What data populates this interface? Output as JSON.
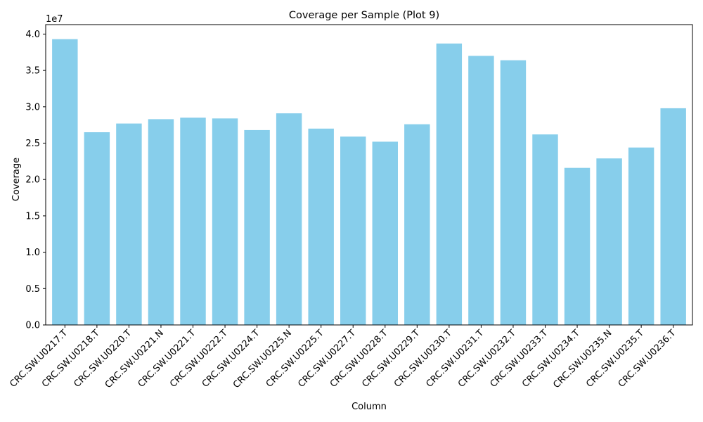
{
  "chart_data": {
    "type": "bar",
    "title": "Coverage per Sample (Plot 9)",
    "xlabel": "Column",
    "ylabel": "Coverage",
    "y_offset_label": "1e7",
    "bar_color": "#87CEEB",
    "ylim": [
      0,
      41300000
    ],
    "yticks": [
      0,
      5000000,
      10000000,
      15000000,
      20000000,
      25000000,
      30000000,
      35000000,
      40000000
    ],
    "ytick_labels": [
      "0.0",
      "0.5",
      "1.0",
      "1.5",
      "2.0",
      "2.5",
      "3.0",
      "3.5",
      "4.0"
    ],
    "categories": [
      "CRC.SW.U0217.T",
      "CRC.SW.U0218.T",
      "CRC.SW.U0220.T",
      "CRC.SW.U0221.N",
      "CRC.SW.U0221.T",
      "CRC.SW.U0222.T",
      "CRC.SW.U0224.T",
      "CRC.SW.U0225.N",
      "CRC.SW.U0225.T",
      "CRC.SW.U0227.T",
      "CRC.SW.U0228.T",
      "CRC.SW.U0229.T",
      "CRC.SW.U0230.T",
      "CRC.SW.U0231.T",
      "CRC.SW.U0232.T",
      "CRC.SW.U0233.T",
      "CRC.SW.U0234.T",
      "CRC.SW.U0235.N",
      "CRC.SW.U0235.T",
      "CRC.SW.U0236.T"
    ],
    "values": [
      39300000,
      26500000,
      27700000,
      28300000,
      28500000,
      28400000,
      26800000,
      29100000,
      27000000,
      25900000,
      25200000,
      27600000,
      38700000,
      37000000,
      36400000,
      26200000,
      21600000,
      22900000,
      24400000,
      29800000
    ]
  }
}
